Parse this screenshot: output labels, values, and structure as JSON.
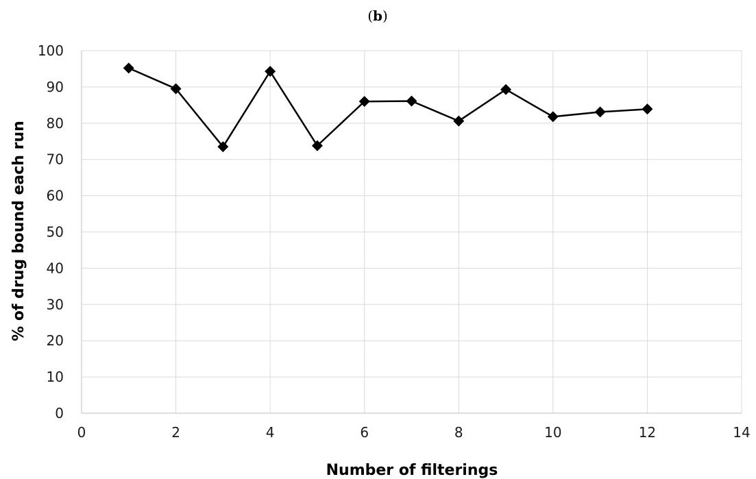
{
  "figure": {
    "panel_label_open": "(",
    "panel_label_letter": "b",
    "panel_label_close": ")"
  },
  "chart_data": {
    "type": "scatter",
    "title": "",
    "xlabel": "Number of filterings",
    "ylabel": "% of drug bound each run",
    "xlim": [
      0,
      14
    ],
    "ylim": [
      0,
      100
    ],
    "x_ticks": [
      0,
      2,
      4,
      6,
      8,
      10,
      12,
      14
    ],
    "y_ticks": [
      0,
      10,
      20,
      30,
      40,
      50,
      60,
      70,
      80,
      90,
      100
    ],
    "grid": true,
    "legend": "none",
    "line_color": "#000000",
    "marker": "diamond",
    "series": [
      {
        "x": [
          1,
          2,
          3,
          4,
          5,
          6,
          7,
          8,
          9,
          10,
          11,
          12
        ],
        "y": [
          95.2,
          89.5,
          73.5,
          94.3,
          73.8,
          86.0,
          86.1,
          80.6,
          89.3,
          81.8,
          83.1,
          83.9
        ]
      }
    ]
  }
}
